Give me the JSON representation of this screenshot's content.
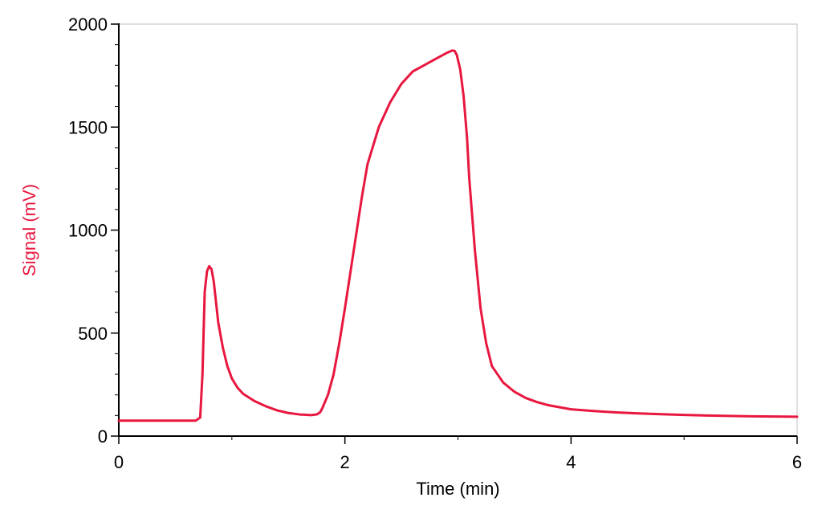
{
  "chart_data": {
    "type": "line",
    "xlabel": "Time (min)",
    "ylabel": "Signal (mV)",
    "xlim": [
      0,
      6
    ],
    "ylim": [
      0,
      2000
    ],
    "x_ticks": [
      "0",
      "2",
      "4",
      "6"
    ],
    "y_ticks": [
      "0",
      "500",
      "1000",
      "1500",
      "2000"
    ],
    "grid": false,
    "series_color": "#e8173f",
    "axis_color": "#000000",
    "frame_color": "#c0c0c0",
    "series": [
      {
        "x": [
          0,
          0.3,
          0.6,
          0.68,
          0.72,
          0.74,
          0.76,
          0.78,
          0.8,
          0.82,
          0.84,
          0.86,
          0.88,
          0.92,
          0.96,
          1.0,
          1.05,
          1.1,
          1.2,
          1.3,
          1.4,
          1.5,
          1.6,
          1.7,
          1.75,
          1.78,
          1.8,
          1.85,
          1.9,
          1.95,
          2.0,
          2.05,
          2.1,
          2.15,
          2.2,
          2.3,
          2.4,
          2.5,
          2.6,
          2.7,
          2.8,
          2.9,
          2.95,
          2.97,
          2.99,
          3.02,
          3.05,
          3.08,
          3.1,
          3.15,
          3.2,
          3.25,
          3.3,
          3.4,
          3.5,
          3.6,
          3.7,
          3.8,
          3.9,
          4.0,
          4.2,
          4.4,
          4.6,
          4.8,
          5.0,
          5.2,
          5.4,
          5.6,
          5.8,
          6.0
        ],
        "y": [
          75,
          75,
          75,
          75,
          90,
          300,
          700,
          800,
          825,
          810,
          750,
          650,
          550,
          430,
          340,
          280,
          235,
          205,
          170,
          145,
          125,
          112,
          105,
          102,
          105,
          115,
          135,
          200,
          300,
          450,
          620,
          800,
          980,
          1160,
          1320,
          1500,
          1620,
          1710,
          1770,
          1800,
          1830,
          1860,
          1872,
          1870,
          1850,
          1780,
          1650,
          1450,
          1250,
          900,
          620,
          450,
          340,
          260,
          215,
          185,
          165,
          150,
          140,
          130,
          122,
          115,
          110,
          106,
          103,
          100,
          98,
          96,
          95,
          94
        ]
      }
    ]
  }
}
